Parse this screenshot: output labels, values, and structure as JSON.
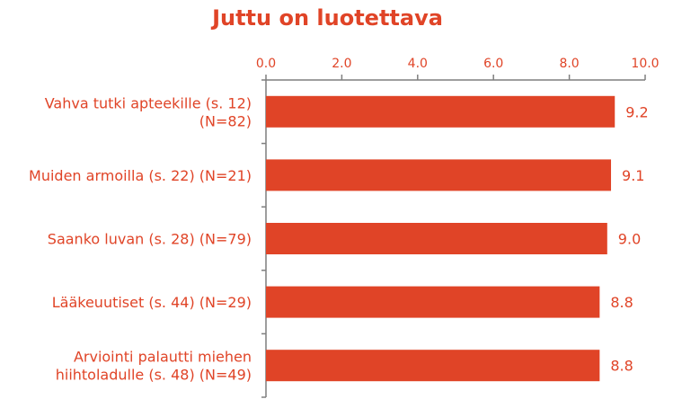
{
  "chart_data": {
    "type": "bar",
    "orientation": "horizontal",
    "title": "Juttu on luotettava",
    "categories": [
      [
        "Vahva tutki apteekille (s. 12)",
        "(N=82)"
      ],
      [
        "Muiden armoilla (s. 22) (N=21)"
      ],
      [
        "Saanko luvan (s. 28) (N=79)"
      ],
      [
        "Lääkeuutiset (s. 44) (N=29)"
      ],
      [
        "Arviointi palautti miehen",
        "hiihtoladulle (s. 48) (N=49)"
      ]
    ],
    "values": [
      9.2,
      9.1,
      9.0,
      8.8,
      8.8
    ],
    "value_labels": [
      "9.2",
      "9.1",
      "9.0",
      "8.8",
      "8.8"
    ],
    "xlim": [
      0,
      10
    ],
    "xticks": [
      "0.0",
      "2.0",
      "4.0",
      "6.0",
      "8.0",
      "10.0"
    ],
    "x_axis_position": "top",
    "grid": false,
    "legend": "none",
    "colors": {
      "bar": "#e04427",
      "text": "#e04427",
      "axis": "#7f7f7f"
    }
  }
}
